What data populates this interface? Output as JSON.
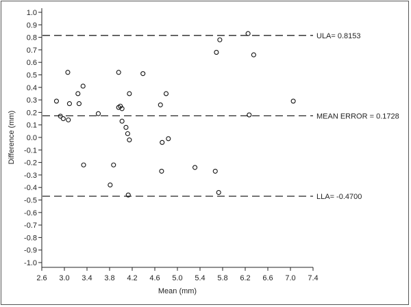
{
  "chart_data": {
    "type": "scatter",
    "xlabel": "Mean (mm)",
    "ylabel": "Difference (mm)",
    "xlim": [
      2.6,
      7.4
    ],
    "ylim": [
      -1.0,
      1.0
    ],
    "x_ticks": [
      "2.6",
      "3.0",
      "3.4",
      "3.8",
      "4.2",
      "4.6",
      "5.0",
      "5.4",
      "5.8",
      "6.2",
      "6.6",
      "7.0",
      "7.4"
    ],
    "y_ticks": [
      "1.0",
      "0.9",
      "0.8",
      "0.7",
      "0.6",
      "0.5",
      "0.4",
      "0.3",
      "0.2",
      "0.1",
      "0.0",
      "-0.1",
      "-0.2",
      "-0.3",
      "-0.4",
      "-0.5",
      "-0.6",
      "-0.7",
      "-0.8",
      "-0.9",
      "-1.0"
    ],
    "reference_lines": [
      {
        "label": "ULA= 0.8153",
        "y": 0.8153
      },
      {
        "label": "MEAN ERROR = 0.1728",
        "y": 0.1728
      },
      {
        "label": "LLA= -0.4700",
        "y": -0.47
      }
    ],
    "grid": false,
    "points": [
      {
        "x": 2.86,
        "y": 0.29
      },
      {
        "x": 2.93,
        "y": 0.17
      },
      {
        "x": 2.98,
        "y": 0.15
      },
      {
        "x": 3.06,
        "y": 0.52
      },
      {
        "x": 3.07,
        "y": 0.14
      },
      {
        "x": 3.09,
        "y": 0.27
      },
      {
        "x": 3.24,
        "y": 0.35
      },
      {
        "x": 3.26,
        "y": 0.27
      },
      {
        "x": 3.33,
        "y": 0.41
      },
      {
        "x": 3.34,
        "y": -0.22
      },
      {
        "x": 3.6,
        "y": 0.19
      },
      {
        "x": 3.81,
        "y": -0.38
      },
      {
        "x": 3.87,
        "y": -0.22
      },
      {
        "x": 3.96,
        "y": 0.52
      },
      {
        "x": 3.96,
        "y": 0.24
      },
      {
        "x": 3.99,
        "y": 0.25
      },
      {
        "x": 4.02,
        "y": 0.23
      },
      {
        "x": 4.02,
        "y": 0.13
      },
      {
        "x": 4.09,
        "y": 0.08
      },
      {
        "x": 4.12,
        "y": 0.03
      },
      {
        "x": 4.13,
        "y": -0.46
      },
      {
        "x": 4.15,
        "y": 0.35
      },
      {
        "x": 4.15,
        "y": -0.02
      },
      {
        "x": 4.39,
        "y": 0.51
      },
      {
        "x": 4.7,
        "y": 0.26
      },
      {
        "x": 4.72,
        "y": -0.27
      },
      {
        "x": 4.73,
        "y": -0.04
      },
      {
        "x": 4.8,
        "y": 0.35
      },
      {
        "x": 4.84,
        "y": -0.01
      },
      {
        "x": 5.31,
        "y": -0.24
      },
      {
        "x": 5.67,
        "y": -0.27
      },
      {
        "x": 5.69,
        "y": 0.68
      },
      {
        "x": 5.73,
        "y": -0.44
      },
      {
        "x": 5.75,
        "y": 0.78
      },
      {
        "x": 6.25,
        "y": 0.83
      },
      {
        "x": 6.27,
        "y": 0.18
      },
      {
        "x": 6.35,
        "y": 0.66
      },
      {
        "x": 7.05,
        "y": 0.29
      }
    ]
  }
}
